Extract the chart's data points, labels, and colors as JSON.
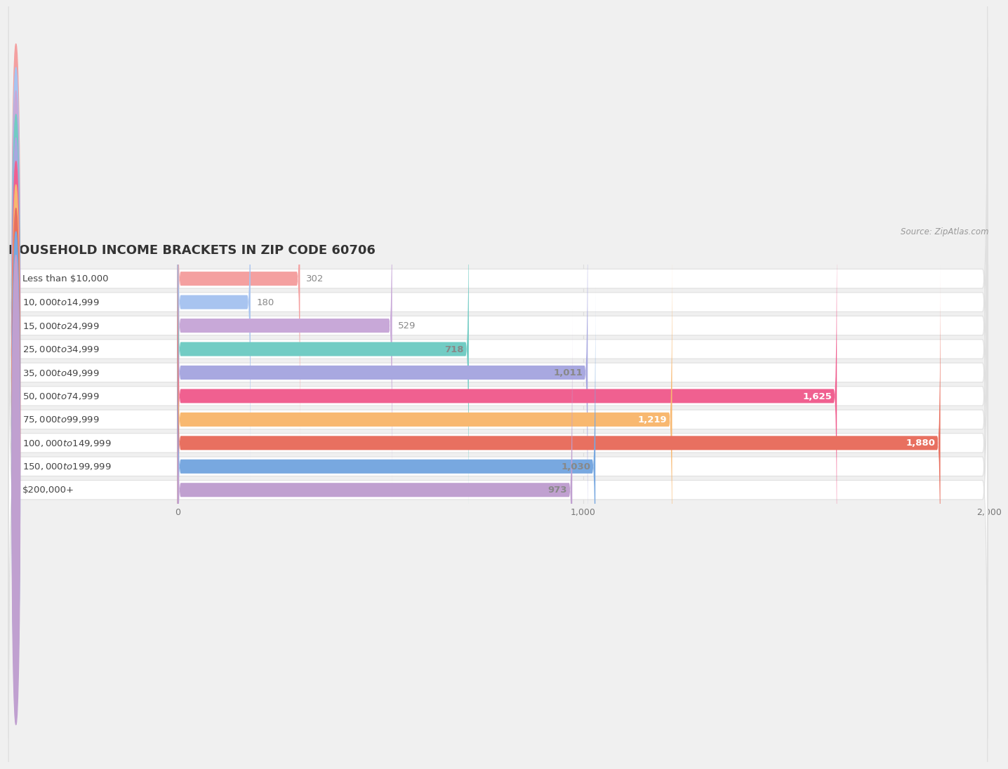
{
  "title": "HOUSEHOLD INCOME BRACKETS IN ZIP CODE 60706",
  "source": "Source: ZipAtlas.com",
  "categories": [
    "Less than $10,000",
    "$10,000 to $14,999",
    "$15,000 to $24,999",
    "$25,000 to $34,999",
    "$35,000 to $49,999",
    "$50,000 to $74,999",
    "$75,000 to $99,999",
    "$100,000 to $149,999",
    "$150,000 to $199,999",
    "$200,000+"
  ],
  "values": [
    302,
    180,
    529,
    718,
    1011,
    1625,
    1219,
    1880,
    1030,
    973
  ],
  "bar_colors": [
    "#F4A0A0",
    "#A8C4F0",
    "#C8A8D8",
    "#72CCC4",
    "#A8A8E0",
    "#F06090",
    "#F8B870",
    "#E87060",
    "#78A8E0",
    "#C0A0D0"
  ],
  "value_text_colors": [
    "#888888",
    "#888888",
    "#888888",
    "#888888",
    "#888888",
    "#ffffff",
    "#ffffff",
    "#ffffff",
    "#888888",
    "#888888"
  ],
  "xlim": [
    0,
    2000
  ],
  "xticks": [
    0,
    1000,
    2000
  ],
  "background_color": "#f0f0f0",
  "row_bg_color": "#ffffff",
  "grid_color": "#dddddd",
  "title_fontsize": 13,
  "label_fontsize": 9.5,
  "value_fontsize": 9.5,
  "tick_fontsize": 9
}
